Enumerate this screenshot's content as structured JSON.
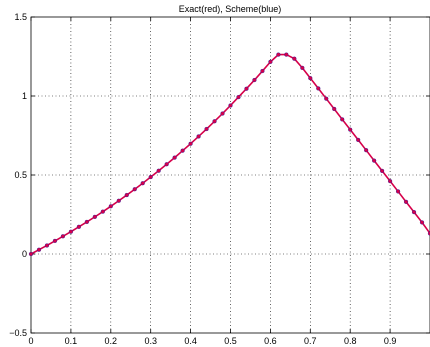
{
  "chart_data": {
    "type": "line",
    "title": "Exact(red), Scheme(blue)",
    "xlabel": "",
    "ylabel": "",
    "xlim": [
      0,
      1
    ],
    "ylim": [
      -0.5,
      1.5
    ],
    "grid": true,
    "x_ticks": [
      0,
      0.1,
      0.2,
      0.3,
      0.4,
      0.5,
      0.6,
      0.7,
      0.8,
      0.9
    ],
    "x_tick_labels": [
      "0",
      "0.1",
      "0.2",
      "0.3",
      "0.4",
      "0.5",
      "0.6",
      "0.7",
      "0.8",
      "0.9"
    ],
    "y_ticks": [
      -0.5,
      0,
      0.5,
      1,
      1.5
    ],
    "y_tick_labels": [
      "−0.5",
      "0",
      "0.5",
      "1",
      "1.5"
    ],
    "series": [
      {
        "color": "#d6004a",
        "style": "line-with-markers",
        "x": [
          0,
          0.02,
          0.04,
          0.06,
          0.08,
          0.1,
          0.12,
          0.14,
          0.16,
          0.18,
          0.2,
          0.22,
          0.24,
          0.26,
          0.28,
          0.3,
          0.32,
          0.34,
          0.36,
          0.38,
          0.4,
          0.42,
          0.44,
          0.46,
          0.48,
          0.5,
          0.52,
          0.54,
          0.56,
          0.58,
          0.6,
          0.62,
          0.64,
          0.66,
          0.68,
          0.7,
          0.72,
          0.74,
          0.76,
          0.78,
          0.8,
          0.82,
          0.84,
          0.86,
          0.88,
          0.9,
          0.92,
          0.94,
          0.96,
          0.98,
          1.0
        ],
        "y": [
          0,
          0.027,
          0.054,
          0.083,
          0.112,
          0.141,
          0.172,
          0.203,
          0.235,
          0.268,
          0.302,
          0.337,
          0.373,
          0.41,
          0.448,
          0.487,
          0.527,
          0.568,
          0.61,
          0.654,
          0.698,
          0.744,
          0.791,
          0.84,
          0.889,
          0.94,
          0.993,
          1.046,
          1.101,
          1.158,
          1.216,
          1.262,
          1.262,
          1.236,
          1.178,
          1.113,
          1.048,
          0.983,
          0.918,
          0.852,
          0.787,
          0.722,
          0.657,
          0.591,
          0.526,
          0.461,
          0.396,
          0.33,
          0.265,
          0.2,
          0.13
        ]
      }
    ]
  }
}
